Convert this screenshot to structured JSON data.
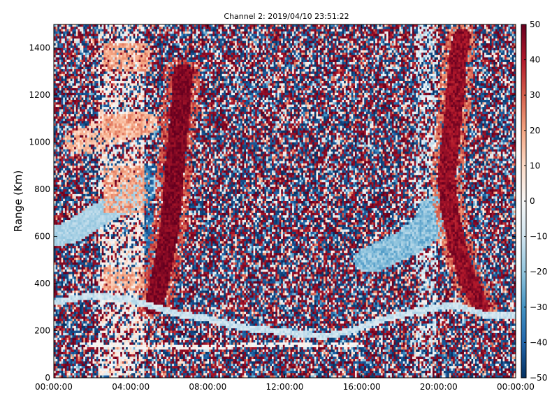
{
  "chart_data": {
    "type": "heatmap",
    "title": "Channel 2: 2019/04/10 23:51:22",
    "xlabel": "",
    "ylabel": "Range (Km)",
    "x_ticks": [
      "00:00:00",
      "04:00:00",
      "08:00:00",
      "12:00:00",
      "16:00:00",
      "20:00:00",
      "00:00:00"
    ],
    "x_range_hours": [
      0,
      24
    ],
    "y_ticks": [
      0,
      200,
      400,
      600,
      800,
      1000,
      1200,
      1400
    ],
    "ylim": [
      0,
      1500
    ],
    "colorbar": {
      "range": [
        -50,
        50
      ],
      "ticks": [
        50,
        40,
        30,
        20,
        10,
        0,
        -10,
        -20,
        -30,
        -40,
        -50
      ],
      "colormap": "RdBu_r",
      "stops": [
        "#053061",
        "#2166ac",
        "#4393c3",
        "#92c5de",
        "#d1e5f0",
        "#f7f7f7",
        "#fddbc7",
        "#f4a582",
        "#d6604d",
        "#b2182b",
        "#67001f"
      ]
    },
    "noise_background": true,
    "features": [
      {
        "kind": "ground-scatter-band",
        "points_hour_km": [
          [
            0,
            320
          ],
          [
            2,
            350
          ],
          [
            4,
            330
          ],
          [
            6.5,
            270
          ],
          [
            8,
            250
          ],
          [
            10,
            210
          ],
          [
            12,
            195
          ],
          [
            14,
            175
          ],
          [
            15.5,
            200
          ],
          [
            17,
            245
          ],
          [
            18.5,
            275
          ],
          [
            20,
            300
          ],
          [
            21,
            305
          ],
          [
            22.5,
            265
          ],
          [
            24,
            265
          ]
        ]
      },
      {
        "kind": "thin-band",
        "points_hour_km": [
          [
            0.8,
            135
          ],
          [
            3,
            140
          ],
          [
            5,
            130
          ],
          [
            8,
            130
          ],
          [
            11,
            140
          ],
          [
            14,
            135
          ],
          [
            16,
            140
          ]
        ]
      },
      {
        "kind": "ionospheric-arc-left",
        "points_hour_km": [
          [
            0,
            600
          ],
          [
            1,
            620
          ],
          [
            2.5,
            700
          ],
          [
            4,
            760
          ],
          [
            4.8,
            820
          ]
        ]
      },
      {
        "kind": "ionospheric-arc-left-upper",
        "points_hour_km": [
          [
            1.5,
            1000
          ],
          [
            2.5,
            1030
          ],
          [
            3.5,
            1060
          ],
          [
            4.5,
            1080
          ]
        ]
      },
      {
        "kind": "ionospheric-arc-right",
        "points_hour_km": [
          [
            16.5,
            500
          ],
          [
            17.5,
            540
          ],
          [
            18.5,
            580
          ],
          [
            19.5,
            640
          ],
          [
            20,
            720
          ]
        ]
      },
      {
        "kind": "red-streak-1",
        "points_hour_km": [
          [
            5.2,
            300
          ],
          [
            5.6,
            450
          ],
          [
            6,
            620
          ],
          [
            6.2,
            800
          ],
          [
            6.4,
            1000
          ],
          [
            6.6,
            1150
          ],
          [
            6.7,
            1300
          ]
        ]
      },
      {
        "kind": "red-streak-2",
        "points_hour_km": [
          [
            22.2,
            300
          ],
          [
            21.5,
            420
          ],
          [
            21,
            550
          ],
          [
            20.6,
            700
          ],
          [
            20.4,
            850
          ],
          [
            20.6,
            1000
          ],
          [
            20.8,
            1150
          ],
          [
            21,
            1350
          ],
          [
            21.2,
            1450
          ]
        ]
      }
    ]
  }
}
